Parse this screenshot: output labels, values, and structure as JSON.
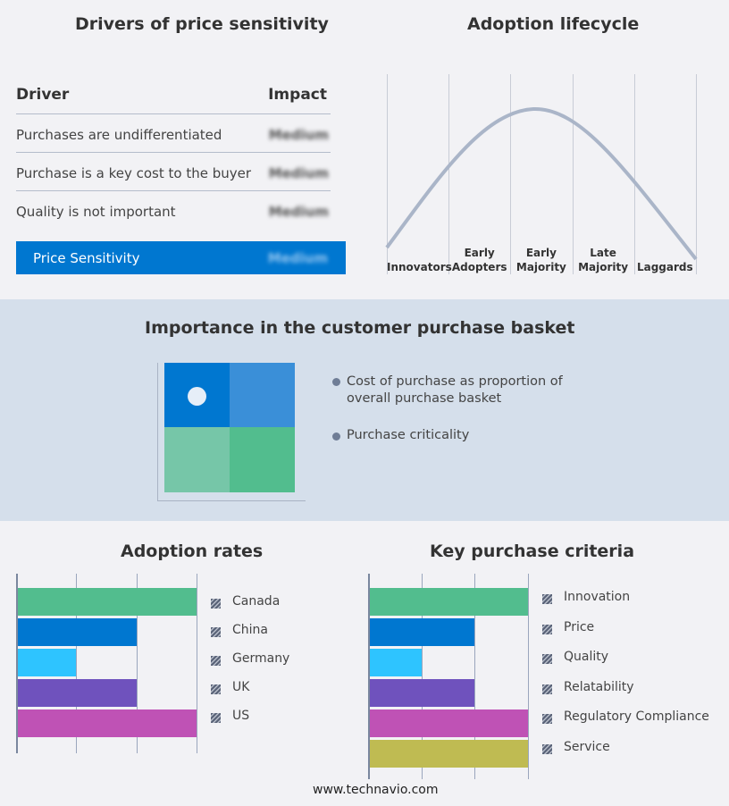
{
  "drivers": {
    "title": "Drivers of price sensitivity",
    "col_driver": "Driver",
    "col_impact": "Impact",
    "rows": [
      {
        "driver": "Purchases are undifferentiated",
        "impact": "Medium"
      },
      {
        "driver": "Purchase is a key cost to the buyer",
        "impact": "Medium"
      },
      {
        "driver": "Quality is not important",
        "impact": "Medium"
      }
    ],
    "summary": {
      "label": "Price Sensitivity",
      "impact": "Medium"
    },
    "highlight_color": "#0077d0"
  },
  "lifecycle": {
    "title": "Adoption lifecycle",
    "stages": [
      [
        "Innovators"
      ],
      [
        "Early",
        "Adopters"
      ],
      [
        "Early",
        "Majority"
      ],
      [
        "Late",
        "Majority"
      ],
      [
        "Laggards"
      ]
    ]
  },
  "basket": {
    "title": "Importance in the customer purchase basket",
    "bullets": [
      "Cost of purchase as proportion of overall purchase basket",
      "Purchase criticality"
    ],
    "selected_quadrant": "high-cost-low-criticality"
  },
  "footer": "www.technavio.com",
  "chart_data": [
    {
      "type": "bar",
      "orientation": "horizontal",
      "title": "Adoption rates",
      "categories": [
        "Canada",
        "China",
        "Germany",
        "UK",
        "US"
      ],
      "values": [
        3,
        2,
        1,
        2,
        3
      ],
      "xlim": [
        0,
        3
      ],
      "grid": true,
      "legend": "right",
      "colors": [
        "#52bd8e",
        "#0077d0",
        "#2ec4ff",
        "#6f52bd",
        "#bf52b5"
      ]
    },
    {
      "type": "bar",
      "orientation": "horizontal",
      "title": "Key purchase criteria",
      "categories": [
        "Innovation",
        "Price",
        "Quality",
        "Relatability",
        "Regulatory Compliance",
        "Service"
      ],
      "values": [
        3,
        2,
        1,
        2,
        3,
        3
      ],
      "xlim": [
        0,
        3
      ],
      "grid": true,
      "legend": "right",
      "colors": [
        "#52bd8e",
        "#0077d0",
        "#2ec4ff",
        "#6f52bd",
        "#bf52b5",
        "#bfbb52"
      ]
    }
  ]
}
